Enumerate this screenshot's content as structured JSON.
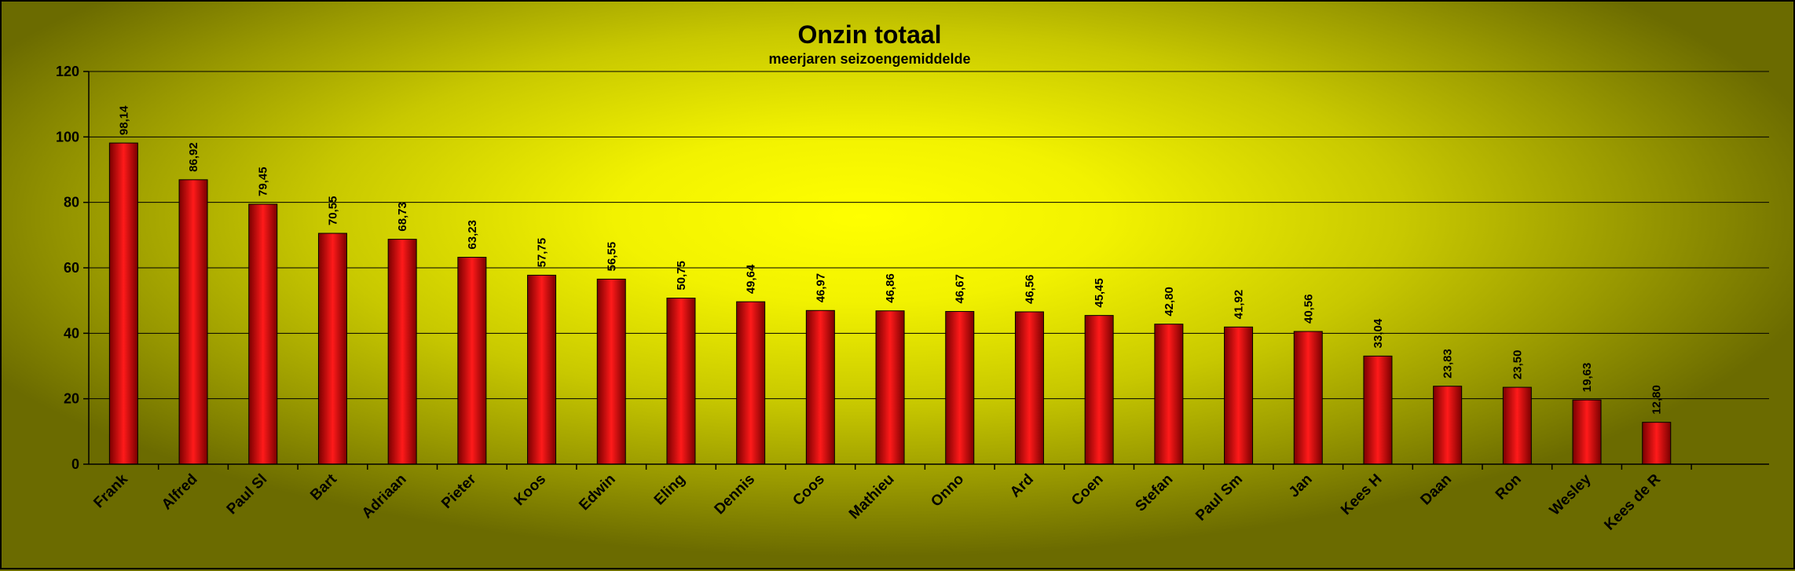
{
  "chart_data": {
    "type": "bar",
    "title": "Onzin totaal",
    "subtitle": "meerjaren seizoengemiddelde",
    "categories": [
      "Frank",
      "Alfred",
      "Paul Sl",
      "Bart",
      "Adriaan",
      "Pieter",
      "Koos",
      "Edwin",
      "Eling",
      "Dennis",
      "Coos",
      "Mathieu",
      "Onno",
      "Ard",
      "Coen",
      "Stefan",
      "Paul Sm",
      "Jan",
      "Kees H",
      "Daan",
      "Ron",
      "Wesley",
      "Kees  de R"
    ],
    "values": [
      98.14,
      86.92,
      79.45,
      70.55,
      68.73,
      63.23,
      57.75,
      56.55,
      50.75,
      49.64,
      46.97,
      46.86,
      46.67,
      46.56,
      45.45,
      42.8,
      41.92,
      40.56,
      33.04,
      23.83,
      23.5,
      19.63,
      12.8
    ],
    "data_labels": [
      "98,14",
      "86,92",
      "79,45",
      "70,55",
      "68,73",
      "63,23",
      "57,75",
      "56,55",
      "50,75",
      "49,64",
      "46,97",
      "46,86",
      "46,67",
      "46,56",
      "45,45",
      "42,80",
      "41,92",
      "40,56",
      "33,04",
      "23,83",
      "23,50",
      "19,63",
      "12,80"
    ],
    "yticks": [
      "0",
      "20",
      "40",
      "60",
      "80",
      "100",
      "120"
    ],
    "ylim": [
      0,
      120
    ],
    "xlabel": "",
    "ylabel": "",
    "grid": true,
    "legend": "none",
    "colors": {
      "bar_light": "#ff1a1a",
      "bar_dark": "#7a0000",
      "background_center": "#ffff00",
      "background_edge": "#6b6b00",
      "gridline": "#000000"
    }
  }
}
